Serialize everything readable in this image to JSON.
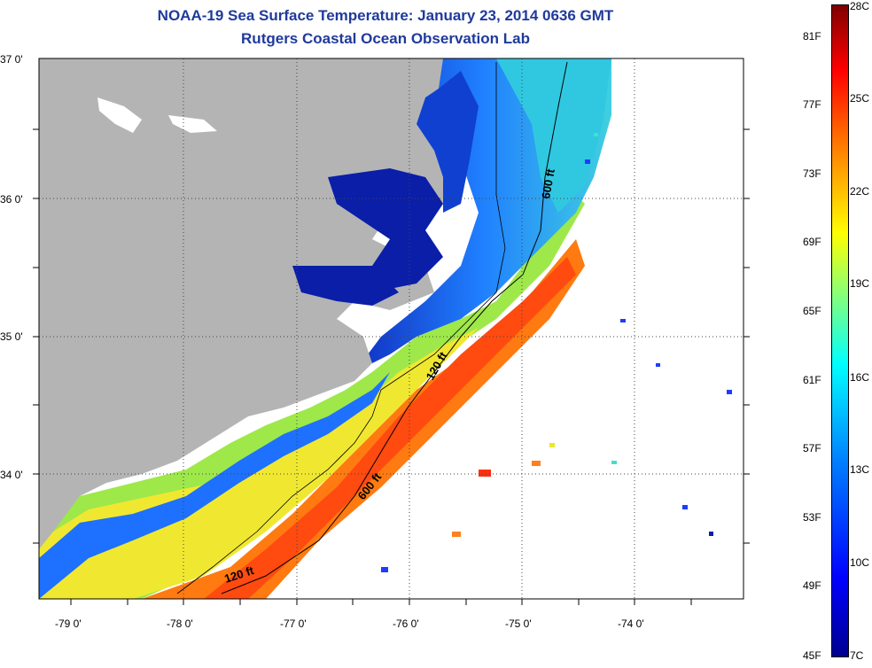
{
  "title": "NOAA-19 Sea Surface Temperature:  January 23, 2014 0636 GMT",
  "subtitle": "Rutgers Coastal Ocean Observation Lab",
  "lat_labels": [
    "37 0'",
    "36 0'",
    "35 0'",
    "34 0'"
  ],
  "lon_labels": [
    "-79 0'",
    "-78 0'",
    "-77 0'",
    "-76 0'",
    "-75 0'",
    "-74 0'"
  ],
  "contours": {
    "c120": "120 ft",
    "c600": "600 ft"
  },
  "colorbar": {
    "f_labels": [
      "81F",
      "77F",
      "73F",
      "69F",
      "65F",
      "61F",
      "57F",
      "53F",
      "49F",
      "45F"
    ],
    "c_labels": [
      "28C",
      "25C",
      "22C",
      "19C",
      "16C",
      "13C",
      "10C",
      "7C"
    ]
  },
  "colors": {
    "land": "#b4b4b4",
    "cold": "#00008f",
    "cool": "#0080ff",
    "mid": "#00ffff",
    "warm": "#ffff00",
    "hot": "#ff4000",
    "title": "#1f3a9c"
  }
}
